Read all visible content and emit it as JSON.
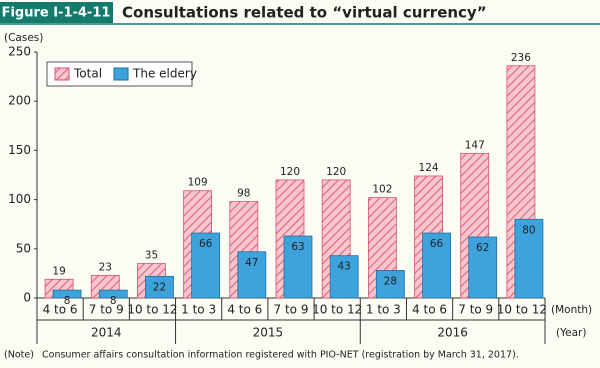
{
  "figure_label": "Figure Ⅰ-1-4-11",
  "chart_data": {
    "type": "bar",
    "title": "Consultations related to “virtual currency”",
    "y_label": "(Cases)",
    "x_label": "(Month)",
    "x2_label": "(Year)",
    "categories": [
      "4 to 6",
      "7 to 9",
      "10 to 12",
      "1 to 3",
      "4 to 6",
      "7 to 9",
      "10 to 12",
      "1 to 3",
      "4 to 6",
      "7 to 9",
      "10 to 12"
    ],
    "year_labels": [
      "2014",
      null,
      null,
      "2015",
      null,
      null,
      null,
      "2016",
      null,
      null,
      null
    ],
    "series": [
      {
        "name": "Total",
        "color": "#f5b8c4",
        "values": [
          19,
          23,
          35,
          109,
          98,
          120,
          120,
          102,
          124,
          147,
          236
        ]
      },
      {
        "name": "The eldery",
        "color": "#3ea3dc",
        "values": [
          8,
          8,
          22,
          66,
          47,
          63,
          43,
          28,
          66,
          62,
          80
        ]
      }
    ],
    "ylim": [
      0,
      250
    ],
    "yticks": [
      0,
      50,
      100,
      150,
      200,
      250
    ],
    "grid": false,
    "legend": "upper left",
    "note_label": "(Note)",
    "note": "Consumer affairs consultation information registered with PIO-NET (registration by March 31, 2017)."
  }
}
